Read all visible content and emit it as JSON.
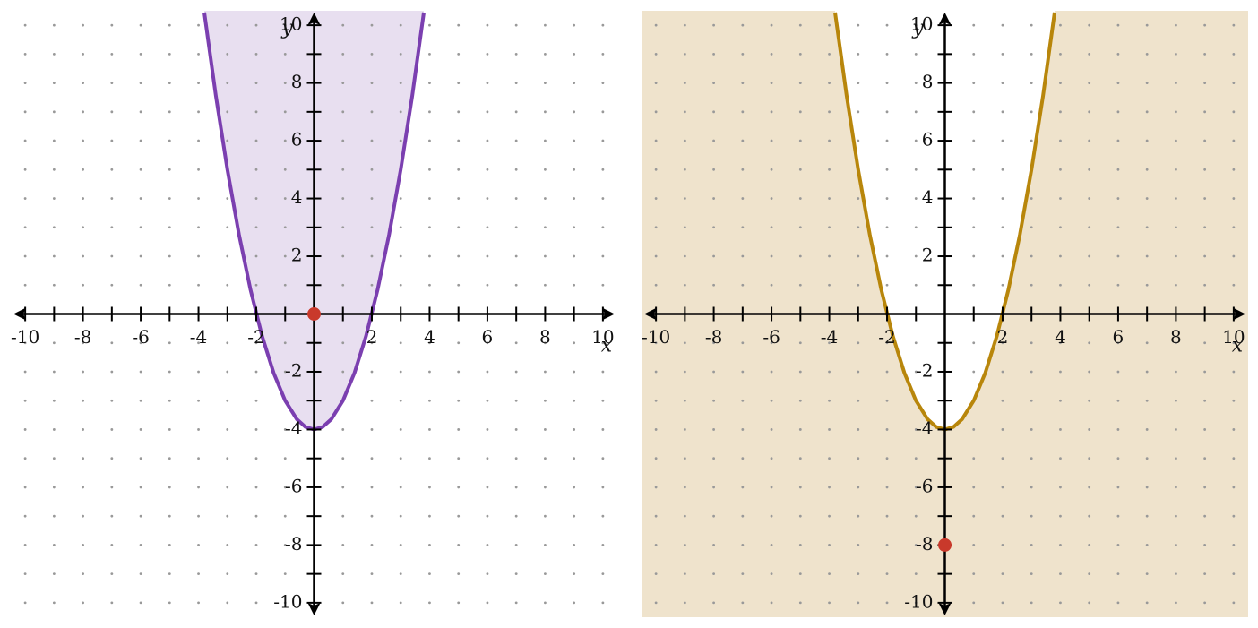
{
  "chart_data": [
    {
      "type": "inequality",
      "shade": "above",
      "grid": true,
      "x_label": "x",
      "y_label": "y",
      "xlim": [
        -10.5,
        10.5
      ],
      "ylim": [
        -10.5,
        10.5
      ],
      "xticks": [
        -10,
        -8,
        -6,
        -4,
        -2,
        2,
        4,
        6,
        8,
        10
      ],
      "yticks": [
        -10,
        -8,
        -6,
        -4,
        -2,
        2,
        4,
        6,
        8,
        10
      ],
      "xminorticks": [
        -9,
        -7,
        -5,
        -3,
        -1,
        1,
        3,
        5,
        7,
        9
      ],
      "yminorticks": [
        -9,
        -7,
        -5,
        -3,
        -1,
        1,
        3,
        5,
        7,
        9
      ],
      "background": "#ffffff",
      "shade_color": "#e8dff0",
      "curve": {
        "color": "#7b3fb0",
        "x": [
          -3.8,
          -3.4,
          -3,
          -2.6,
          -2.2,
          -1.8,
          -1.4,
          -1,
          -0.6,
          -0.3,
          0,
          0.3,
          0.6,
          1,
          1.4,
          1.8,
          2.2,
          2.6,
          3,
          3.4,
          3.8
        ],
        "y": [
          10.44,
          7.56,
          5,
          2.76,
          0.84,
          -0.76,
          -2.04,
          -3,
          -3.64,
          -3.91,
          -4,
          -3.91,
          -3.64,
          -3,
          -2.04,
          -0.76,
          0.84,
          2.76,
          5,
          7.56,
          10.44
        ]
      },
      "points": [
        {
          "x": 0,
          "y": 0,
          "color": "#c9392b"
        }
      ]
    },
    {
      "type": "inequality",
      "shade": "below",
      "grid": true,
      "x_label": "x",
      "y_label": "y",
      "xlim": [
        -10.5,
        10.5
      ],
      "ylim": [
        -10.5,
        10.5
      ],
      "xticks": [
        -10,
        -8,
        -6,
        -4,
        -2,
        2,
        4,
        6,
        8,
        10
      ],
      "yticks": [
        -10,
        -8,
        -6,
        -4,
        -2,
        2,
        4,
        6,
        8,
        10
      ],
      "xminorticks": [
        -9,
        -7,
        -5,
        -3,
        -1,
        1,
        3,
        5,
        7,
        9
      ],
      "yminorticks": [
        -9,
        -7,
        -5,
        -3,
        -1,
        1,
        3,
        5,
        7,
        9
      ],
      "background": "#ffffff",
      "shade_color": "#efe3cc",
      "curve": {
        "color": "#b8860b",
        "x": [
          -3.8,
          -3.4,
          -3,
          -2.6,
          -2.2,
          -1.8,
          -1.4,
          -1,
          -0.6,
          -0.3,
          0,
          0.3,
          0.6,
          1,
          1.4,
          1.8,
          2.2,
          2.6,
          3,
          3.4,
          3.8
        ],
        "y": [
          10.44,
          7.56,
          5,
          2.76,
          0.84,
          -0.76,
          -2.04,
          -3,
          -3.64,
          -3.91,
          -4,
          -3.91,
          -3.64,
          -3,
          -2.04,
          -0.76,
          0.84,
          2.76,
          5,
          7.56,
          10.44
        ]
      },
      "points": [
        {
          "x": 0,
          "y": -8,
          "color": "#c9392b"
        }
      ]
    }
  ]
}
